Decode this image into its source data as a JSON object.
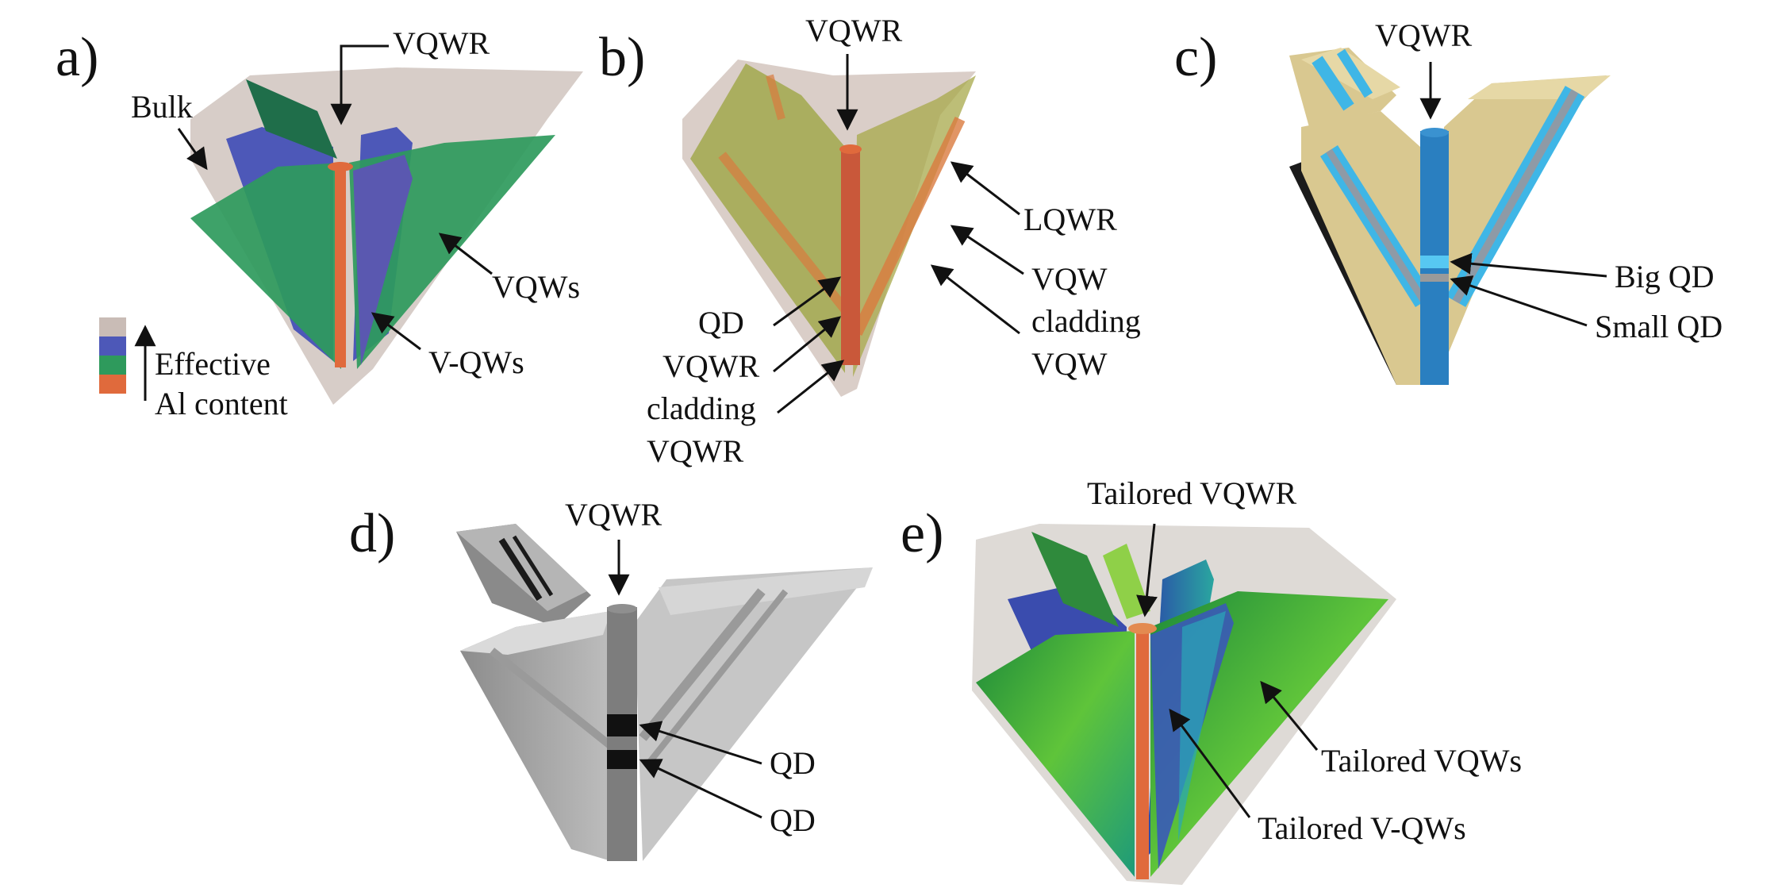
{
  "panels": {
    "a": {
      "letter": "a)",
      "labels": {
        "vqwr": "VQWR",
        "bulk": "Bulk",
        "vqws": "VQWs",
        "vqws2": "V-QWs"
      },
      "legend": {
        "line1": "Effective",
        "line2": "Al content",
        "colors": [
          "#c9bcb6",
          "#4d58b8",
          "#2e9a5c",
          "#e06a3c"
        ]
      }
    },
    "b": {
      "letter": "b)",
      "labels": {
        "vqwr": "VQWR",
        "lqwr": "LQWR",
        "vqw": "VQW",
        "cladding1": "cladding",
        "vqw2": "VQW",
        "qd": "QD",
        "vqwr2": "VQWR",
        "cladding2": "cladding",
        "vqwr3": "VQWR"
      }
    },
    "c": {
      "letter": "c)",
      "labels": {
        "vqwr": "VQWR",
        "big_qd": "Big QD",
        "small_qd": "Small QD"
      }
    },
    "d": {
      "letter": "d)",
      "labels": {
        "vqwr": "VQWR",
        "qd1": "QD",
        "qd2": "QD"
      }
    },
    "e": {
      "letter": "e)",
      "labels": {
        "tvqwr": "Tailored VQWR",
        "tvqws": "Tailored VQWs",
        "tvqws2": "Tailored V-QWs"
      }
    }
  },
  "colors": {
    "bulk": "#c9bcb6",
    "blue": "#4d58b8",
    "green": "#2e9a5c",
    "orange": "#e06a3c",
    "tan": "#d9c890",
    "cyan": "#3fb6e6",
    "gray": "#a9a9a9",
    "dark": "#1b1b1b"
  }
}
